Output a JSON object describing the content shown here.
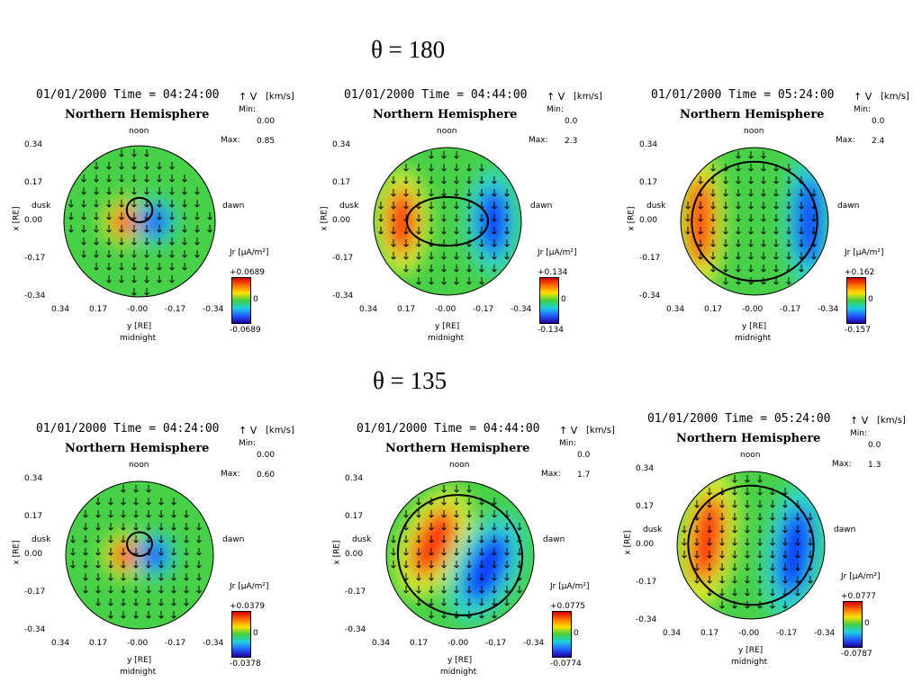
{
  "rows": [
    {
      "label": "θ = 180"
    },
    {
      "label": "θ = 135"
    }
  ],
  "common": {
    "hemisphere": "Northern Hemisphere",
    "noon": "noon",
    "midnight": "midnight",
    "dusk": "dusk",
    "dawn": "dawn",
    "x_label": "x [R",
    "y_label": "y [R",
    "subscript_e": "E",
    "axis_close": "]",
    "v_label": "V",
    "v_unit": "[km/s]",
    "min_label": "Min:",
    "max_label": "Max:",
    "jr_label": "J",
    "jr_unit": "[μA/m²]",
    "zero": "0",
    "x_ticks": [
      "0.34",
      "0.17",
      "0.00",
      "-0.17",
      "-0.34"
    ],
    "y_ticks": [
      "0.34",
      "0.17",
      "-0.00",
      "-0.17",
      "-0.34"
    ]
  },
  "chart_data": [
    {
      "type": "heatmap",
      "row": 0,
      "col": 0,
      "time": "01/01/2000 Time = 04:24:00",
      "v_min": "0.00",
      "v_max": "0.85",
      "jr_max": "+0.0689",
      "jr_min": "-0.0689",
      "pattern": "small"
    },
    {
      "type": "heatmap",
      "row": 0,
      "col": 1,
      "time": "01/01/2000 Time = 04:44:00",
      "v_min": "0.0",
      "v_max": "2.3",
      "jr_max": "+0.134",
      "jr_min": "-0.134",
      "pattern": "medium"
    },
    {
      "type": "heatmap",
      "row": 0,
      "col": 2,
      "time": "01/01/2000 Time = 05:24:00",
      "v_min": "0.0",
      "v_max": "2.4",
      "jr_max": "+0.162",
      "jr_min": "-0.157",
      "pattern": "large"
    },
    {
      "type": "heatmap",
      "row": 1,
      "col": 0,
      "time": "01/01/2000 Time = 04:24:00",
      "v_min": "0.00",
      "v_max": "0.60",
      "jr_max": "+0.0379",
      "jr_min": "-0.0378",
      "pattern": "small"
    },
    {
      "type": "heatmap",
      "row": 1,
      "col": 1,
      "time": "01/01/2000 Time = 04:44:00",
      "v_min": "0.0",
      "v_max": "1.7",
      "jr_max": "+0.0775",
      "jr_min": "-0.0774",
      "pattern": "tilted"
    },
    {
      "type": "heatmap",
      "row": 1,
      "col": 2,
      "time": "01/01/2000 Time = 05:24:00",
      "v_min": "0.0",
      "v_max": "1.3",
      "jr_max": "+0.0777",
      "jr_min": "-0.0787",
      "pattern": "large-tilted"
    }
  ]
}
